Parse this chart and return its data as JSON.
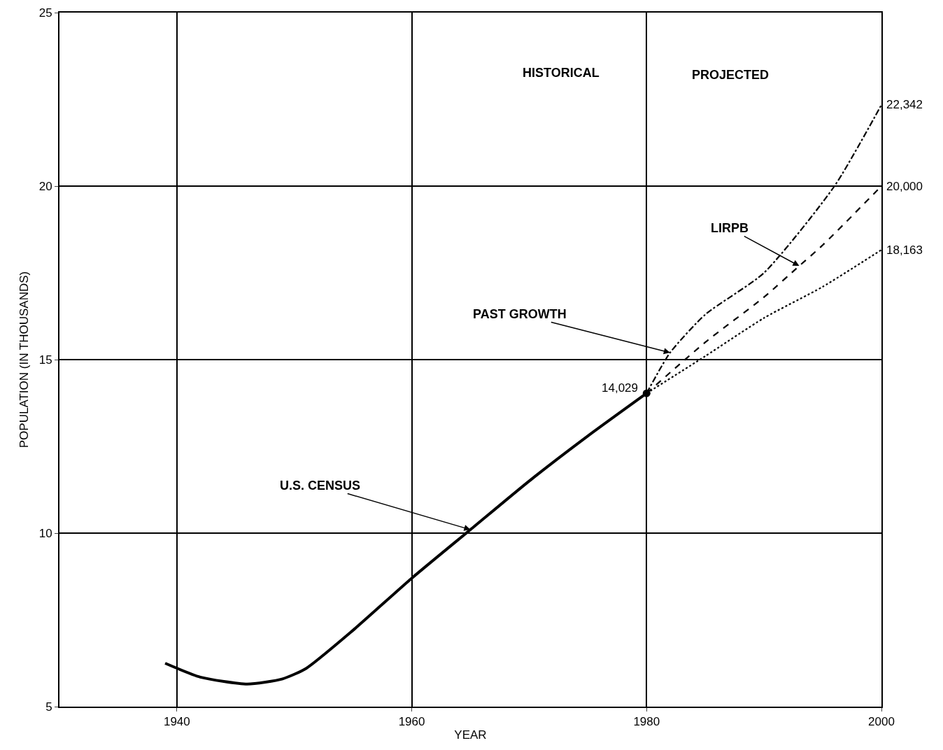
{
  "chart_data": {
    "type": "line",
    "xlabel": "YEAR",
    "ylabel": "POPULATION (IN THOUSANDS)",
    "xlim": [
      1930,
      2000
    ],
    "xticks": [
      1940,
      1960,
      1980,
      2000
    ],
    "ylim": [
      5,
      25
    ],
    "yticks": [
      5,
      10,
      15,
      20,
      25
    ],
    "grid": true,
    "marker": "none",
    "series": [
      {
        "color": "#000000",
        "line_style": "solid",
        "x": [
          1939,
          1942,
          1946,
          1949,
          1951,
          1955,
          1960,
          1965,
          1970,
          1975,
          1980
        ],
        "values": [
          6.25,
          5.85,
          5.65,
          5.8,
          6.1,
          7.2,
          8.7,
          10.1,
          11.5,
          12.8,
          14.029
        ]
      },
      {
        "color": "#000000",
        "line_style": "dashdot",
        "x": [
          1980,
          1982,
          1985,
          1990,
          1996,
          2000
        ],
        "values": [
          14.029,
          15.2,
          16.3,
          17.5,
          20.0,
          22.342
        ]
      },
      {
        "color": "#000000",
        "line_style": "dashed",
        "x": [
          1980,
          1985,
          1990,
          1993,
          1995,
          2000
        ],
        "values": [
          14.029,
          15.5,
          16.8,
          17.7,
          18.3,
          20.0
        ]
      },
      {
        "color": "#000000",
        "line_style": "dotted",
        "x": [
          1980,
          1985,
          1990,
          1995,
          2000
        ],
        "values": [
          14.029,
          15.1,
          16.2,
          17.1,
          18.163
        ]
      },
      {
        "type": "scatter",
        "marker": "circle",
        "color": "#000000",
        "x": [
          1980
        ],
        "values": [
          14.029
        ]
      }
    ],
    "annotations": [
      "HISTORICAL",
      "PROJECTED",
      {
        "text": "U.S. CENSUS",
        "x": 1965,
        "y": 10.1
      },
      {
        "text": "PAST GROWTH",
        "x": 1982,
        "y": 15.2
      },
      {
        "text": "LIRPB",
        "x": 1993,
        "y": 17.7
      },
      {
        "text": "14,029",
        "x": 1980,
        "y": 14.029
      },
      {
        "text": "22,342",
        "x": 2000,
        "y": 22.342
      },
      {
        "text": "20,000",
        "x": 2000,
        "y": 20.0
      },
      {
        "text": "18,163",
        "x": 2000,
        "y": 18.163
      }
    ]
  }
}
